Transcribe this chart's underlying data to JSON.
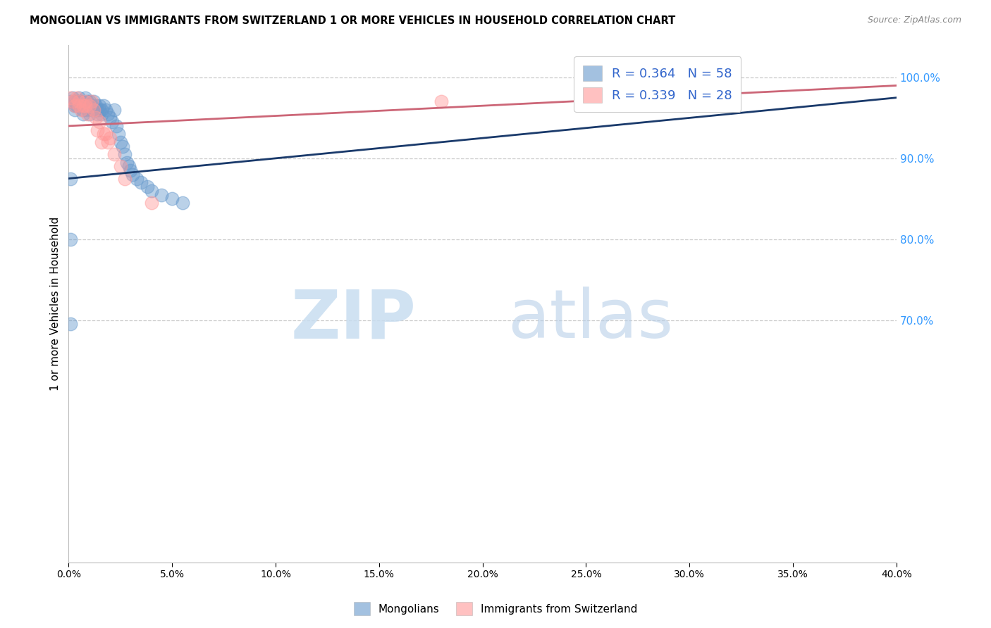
{
  "title": "MONGOLIAN VS IMMIGRANTS FROM SWITZERLAND 1 OR MORE VEHICLES IN HOUSEHOLD CORRELATION CHART",
  "source": "Source: ZipAtlas.com",
  "ylabel": "1 or more Vehicles in Household",
  "ytick_labels": [
    "100.0%",
    "90.0%",
    "80.0%",
    "70.0%"
  ],
  "ytick_values": [
    1.0,
    0.9,
    0.8,
    0.7
  ],
  "xlim": [
    0.0,
    0.4
  ],
  "ylim": [
    0.4,
    1.04
  ],
  "legend_mongolian": "R = 0.364   N = 58",
  "legend_swiss": "R = 0.339   N = 28",
  "mongolian_color": "#6699CC",
  "swiss_color": "#FF9999",
  "trendline_mongolian_color": "#1a3a6b",
  "trendline_swiss_color": "#cc6677",
  "trendline_mongolian": [
    0.0,
    0.4,
    0.875,
    0.975
  ],
  "trendline_swiss": [
    0.0,
    0.4,
    0.94,
    0.99
  ],
  "mongolian_x": [
    0.001,
    0.002,
    0.003,
    0.003,
    0.003,
    0.004,
    0.004,
    0.005,
    0.005,
    0.005,
    0.006,
    0.006,
    0.007,
    0.007,
    0.008,
    0.008,
    0.009,
    0.009,
    0.01,
    0.01,
    0.01,
    0.011,
    0.011,
    0.012,
    0.012,
    0.013,
    0.013,
    0.014,
    0.014,
    0.015,
    0.015,
    0.016,
    0.016,
    0.017,
    0.018,
    0.019,
    0.02,
    0.021,
    0.022,
    0.023,
    0.024,
    0.025,
    0.026,
    0.027,
    0.028,
    0.029,
    0.03,
    0.031,
    0.033,
    0.035,
    0.038,
    0.04,
    0.045,
    0.05,
    0.055,
    0.001,
    0.001,
    0.001
  ],
  "mongolian_y": [
    0.97,
    0.975,
    0.97,
    0.965,
    0.96,
    0.97,
    0.965,
    0.975,
    0.97,
    0.965,
    0.97,
    0.965,
    0.96,
    0.955,
    0.975,
    0.965,
    0.97,
    0.96,
    0.965,
    0.97,
    0.955,
    0.96,
    0.965,
    0.97,
    0.96,
    0.965,
    0.96,
    0.955,
    0.96,
    0.965,
    0.96,
    0.955,
    0.96,
    0.965,
    0.96,
    0.955,
    0.95,
    0.945,
    0.96,
    0.94,
    0.93,
    0.92,
    0.915,
    0.905,
    0.895,
    0.89,
    0.885,
    0.88,
    0.875,
    0.87,
    0.865,
    0.86,
    0.855,
    0.85,
    0.845,
    0.875,
    0.8,
    0.695
  ],
  "swiss_x": [
    0.001,
    0.002,
    0.003,
    0.004,
    0.005,
    0.005,
    0.006,
    0.007,
    0.008,
    0.008,
    0.009,
    0.01,
    0.011,
    0.012,
    0.013,
    0.014,
    0.015,
    0.016,
    0.017,
    0.018,
    0.019,
    0.02,
    0.022,
    0.025,
    0.027,
    0.04,
    0.18,
    0.3
  ],
  "swiss_y": [
    0.975,
    0.97,
    0.965,
    0.975,
    0.965,
    0.97,
    0.96,
    0.965,
    0.97,
    0.965,
    0.955,
    0.965,
    0.97,
    0.96,
    0.95,
    0.935,
    0.945,
    0.92,
    0.93,
    0.93,
    0.92,
    0.925,
    0.905,
    0.89,
    0.875,
    0.845,
    0.97,
    0.99
  ]
}
